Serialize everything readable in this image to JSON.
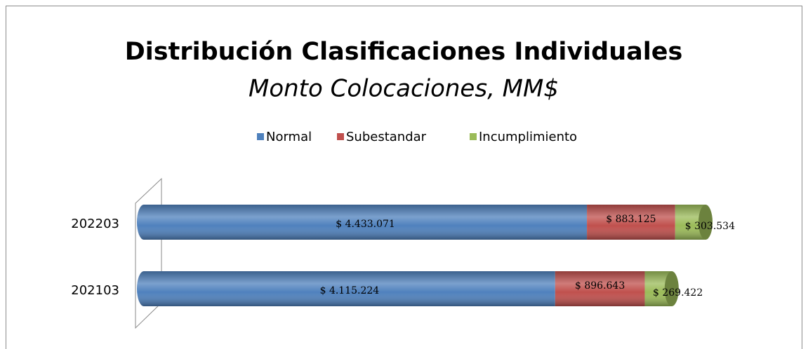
{
  "chart_data": {
    "type": "stacked_bar_horizontal",
    "title": "Distribución Clasificaciones Individuales",
    "subtitle": "Monto Colocaciones, MM$",
    "categories": [
      "202203",
      "202103"
    ],
    "series": [
      {
        "name": "Normal",
        "color": "#4f81bd",
        "values": [
          4433071,
          4115224
        ],
        "value_labels": [
          "$ 4.433.071",
          "$ 4.115.224"
        ]
      },
      {
        "name": "Subestandar",
        "color": "#c0504d",
        "values": [
          883125,
          896643
        ],
        "value_labels": [
          "$ 883.125",
          "$ 896.643"
        ]
      },
      {
        "name": "Incumplimiento",
        "color": "#9bbb59",
        "values": [
          303534,
          269422
        ],
        "value_labels": [
          "$ 303.534",
          "$ 269.422"
        ]
      }
    ],
    "legend": "top"
  }
}
